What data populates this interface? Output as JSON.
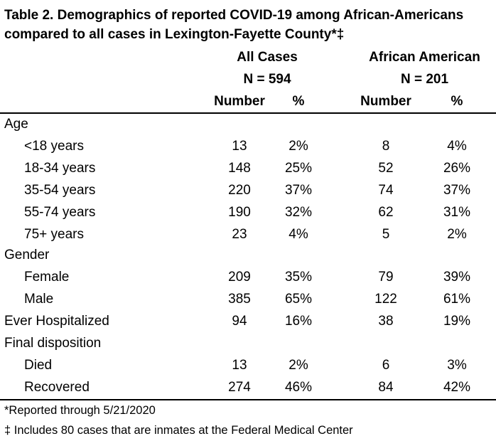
{
  "title": "Table 2. Demographics of reported COVID-19 among African-Americans compared to all cases in Lexington-Fayette County*‡",
  "groups": [
    {
      "name": "All Cases",
      "n": "N = 594"
    },
    {
      "name": "African American",
      "n": "N = 201"
    }
  ],
  "columns": {
    "number": "Number",
    "percent": "%"
  },
  "rows": [
    {
      "label": "Age",
      "indent": false,
      "all_n": "",
      "all_pct": "",
      "aa_n": "",
      "aa_pct": ""
    },
    {
      "label": "<18 years",
      "indent": true,
      "all_n": "13",
      "all_pct": "2%",
      "aa_n": "8",
      "aa_pct": "4%"
    },
    {
      "label": "18-34 years",
      "indent": true,
      "all_n": "148",
      "all_pct": "25%",
      "aa_n": "52",
      "aa_pct": "26%"
    },
    {
      "label": "35-54 years",
      "indent": true,
      "all_n": "220",
      "all_pct": "37%",
      "aa_n": "74",
      "aa_pct": "37%"
    },
    {
      "label": "55-74 years",
      "indent": true,
      "all_n": "190",
      "all_pct": "32%",
      "aa_n": "62",
      "aa_pct": "31%"
    },
    {
      "label": "75+ years",
      "indent": true,
      "all_n": "23",
      "all_pct": "4%",
      "aa_n": "5",
      "aa_pct": "2%"
    },
    {
      "label": "Gender",
      "indent": false,
      "all_n": "",
      "all_pct": "",
      "aa_n": "",
      "aa_pct": ""
    },
    {
      "label": "Female",
      "indent": true,
      "all_n": "209",
      "all_pct": "35%",
      "aa_n": "79",
      "aa_pct": "39%"
    },
    {
      "label": "Male",
      "indent": true,
      "all_n": "385",
      "all_pct": "65%",
      "aa_n": "122",
      "aa_pct": "61%"
    },
    {
      "label": "Ever Hospitalized",
      "indent": false,
      "all_n": "94",
      "all_pct": "16%",
      "aa_n": "38",
      "aa_pct": "19%"
    },
    {
      "label": "Final disposition",
      "indent": false,
      "all_n": "",
      "all_pct": "",
      "aa_n": "",
      "aa_pct": ""
    },
    {
      "label": "Died",
      "indent": true,
      "all_n": "13",
      "all_pct": "2%",
      "aa_n": "6",
      "aa_pct": "3%"
    },
    {
      "label": "Recovered",
      "indent": true,
      "all_n": "274",
      "all_pct": "46%",
      "aa_n": "84",
      "aa_pct": "42%"
    }
  ],
  "footnotes": [
    "*Reported through 5/21/2020",
    "‡ Includes 80 cases that are inmates at the Federal Medical Center"
  ]
}
